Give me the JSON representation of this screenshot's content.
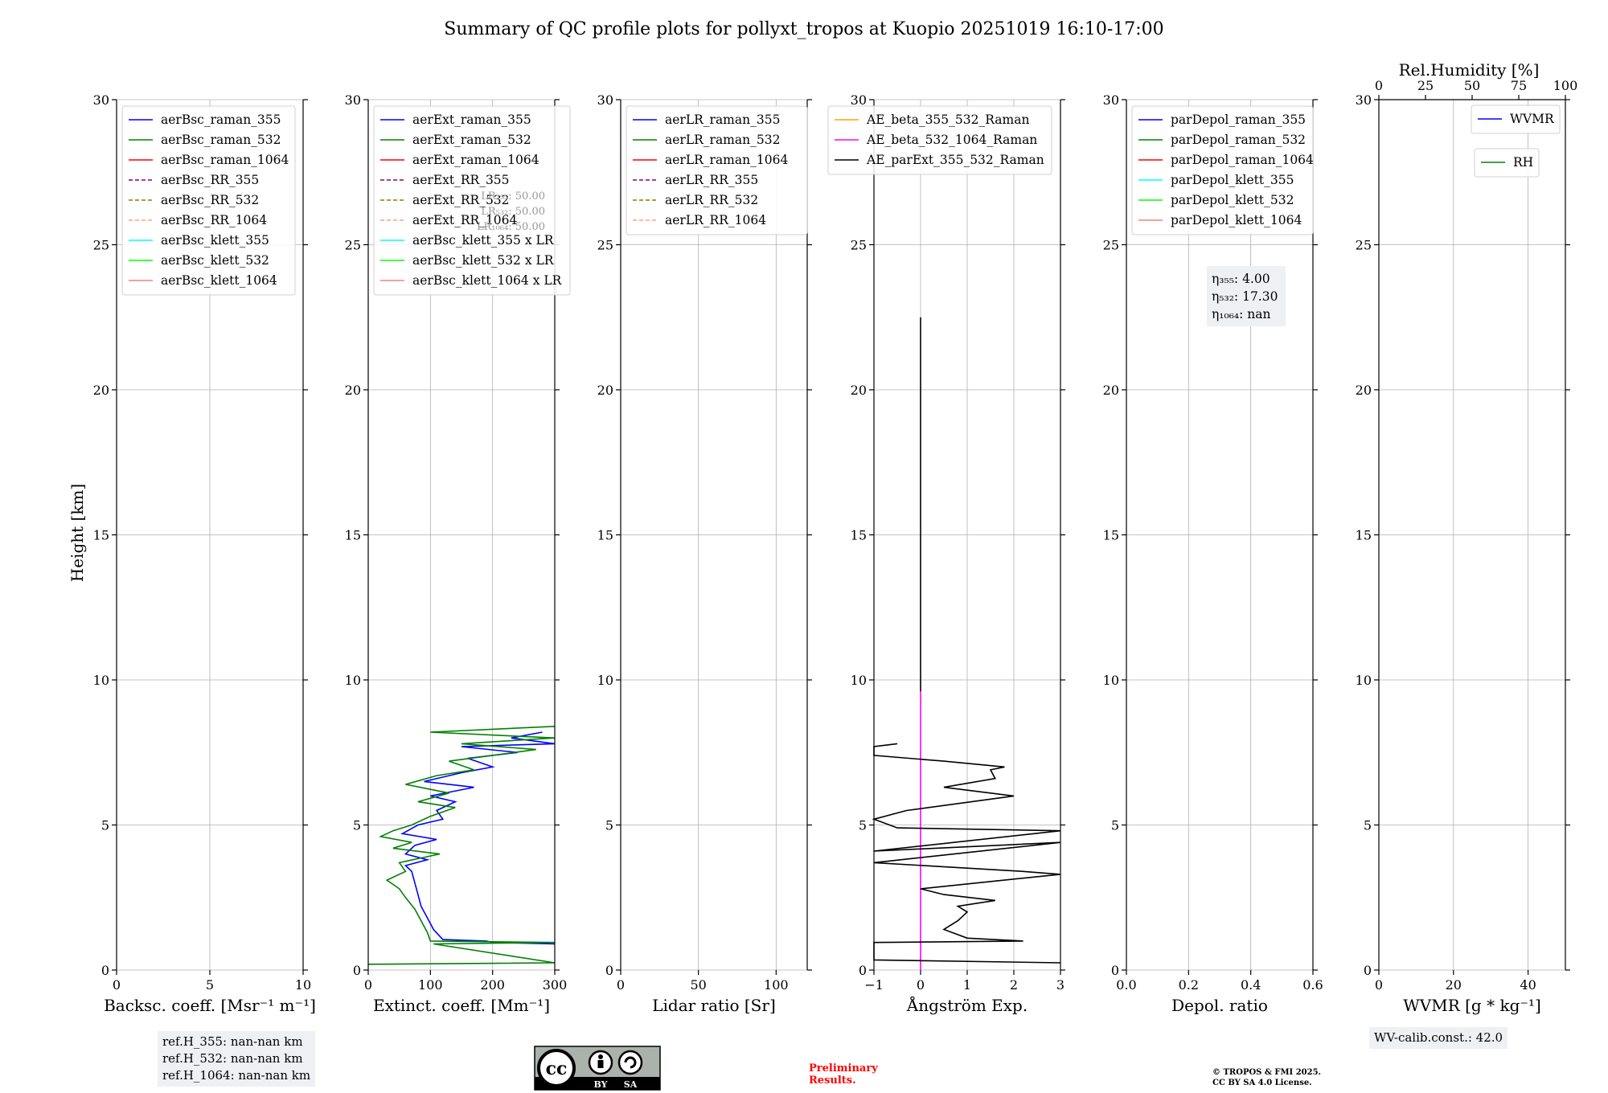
{
  "title": "Summary of QC profile plots for pollyxt_tropos at Kuopio 20251019 16:10-17:00",
  "ylabel": "Height [km]",
  "yticks": [
    "0",
    "5",
    "10",
    "15",
    "20",
    "25",
    "30"
  ],
  "ylim": [
    0,
    30
  ],
  "colors": {
    "blue": "#0000ff",
    "green": "#008000",
    "red": "#ff0000",
    "purple": "#800080",
    "olive": "#808000",
    "salmon": "#ffa07a",
    "cyan": "#00ffff",
    "lime": "#00ff00",
    "lightcoral": "#f08080",
    "orange": "#ffa500",
    "magenta": "#ff00ff",
    "black": "#000000",
    "grid": "#b0b0b0",
    "red_text": "#ff0000"
  },
  "chart_data": [
    {
      "type": "line",
      "xlabel": "Backsc. coeff. [Msr⁻¹ m⁻¹]",
      "xlim": [
        0,
        10
      ],
      "xticks": [
        0,
        5,
        10
      ],
      "xtick_labels": [
        "0",
        "5",
        "10"
      ],
      "legend": [
        {
          "label": "aerBsc_raman_355",
          "color": "blue",
          "dash": false
        },
        {
          "label": "aerBsc_raman_532",
          "color": "green",
          "dash": false
        },
        {
          "label": "aerBsc_raman_1064",
          "color": "red",
          "dash": false
        },
        {
          "label": "aerBsc_RR_355",
          "color": "purple",
          "dash": true
        },
        {
          "label": "aerBsc_RR_532",
          "color": "olive",
          "dash": true
        },
        {
          "label": "aerBsc_RR_1064",
          "color": "salmon",
          "dash": true
        },
        {
          "label": "aerBsc_klett_355",
          "color": "cyan",
          "dash": false
        },
        {
          "label": "aerBsc_klett_532",
          "color": "lime",
          "dash": false
        },
        {
          "label": "aerBsc_klett_1064",
          "color": "lightcoral",
          "dash": false
        }
      ],
      "series": []
    },
    {
      "type": "line",
      "xlabel": "Extinct. coeff. [Mm⁻¹]",
      "xlim": [
        0,
        300
      ],
      "xticks": [
        0,
        100,
        200,
        300
      ],
      "xtick_labels": [
        "0",
        "100",
        "200",
        "300"
      ],
      "legend": [
        {
          "label": "aerExt_raman_355",
          "color": "blue",
          "dash": false
        },
        {
          "label": "aerExt_raman_532",
          "color": "green",
          "dash": false
        },
        {
          "label": "aerExt_raman_1064",
          "color": "red",
          "dash": false
        },
        {
          "label": "aerExt_RR_355",
          "color": "purple",
          "dash": true
        },
        {
          "label": "aerExt_RR_532",
          "color": "olive",
          "dash": true
        },
        {
          "label": "aerExt_RR_1064",
          "color": "salmon",
          "dash": true
        },
        {
          "label": "aerBsc_klett_355 x LR",
          "color": "cyan",
          "dash": false
        },
        {
          "label": "aerBsc_klett_532 x LR",
          "color": "lime",
          "dash": false
        },
        {
          "label": "aerBsc_klett_1064 x LR",
          "color": "lightcoral",
          "dash": false
        }
      ],
      "annotations": [
        "LR₃₅₅: 50.00",
        "LR₅₃₂: 50.00",
        "LR₁₀₆₄: 50.00"
      ],
      "series": [
        {
          "name": "aerExt_raman_355",
          "color": "blue",
          "points": [
            [
              300,
              0.9
            ],
            [
              200,
              0.95
            ],
            [
              190,
              1.0
            ],
            [
              120,
              1.05
            ],
            [
              105,
              1.4
            ],
            [
              95,
              1.8
            ],
            [
              85,
              2.2
            ],
            [
              80,
              2.6
            ],
            [
              75,
              3.0
            ],
            [
              70,
              3.4
            ],
            [
              60,
              3.6
            ],
            [
              95,
              3.8
            ],
            [
              60,
              4.0
            ],
            [
              75,
              4.3
            ],
            [
              110,
              4.5
            ],
            [
              55,
              4.7
            ],
            [
              80,
              5.0
            ],
            [
              120,
              5.2
            ],
            [
              110,
              5.5
            ],
            [
              140,
              5.8
            ],
            [
              100,
              6.0
            ],
            [
              170,
              6.3
            ],
            [
              90,
              6.5
            ],
            [
              150,
              6.8
            ],
            [
              200,
              7.0
            ],
            [
              160,
              7.3
            ],
            [
              240,
              7.5
            ],
            [
              150,
              7.7
            ],
            [
              300,
              7.8
            ],
            [
              230,
              8.0
            ],
            [
              280,
              8.2
            ]
          ]
        },
        {
          "name": "aerExt_raman_532",
          "color": "green",
          "points": [
            [
              0,
              0.2
            ],
            [
              300,
              0.25
            ],
            [
              105,
              0.9
            ],
            [
              300,
              0.95
            ],
            [
              100,
              1.0
            ],
            [
              95,
              1.3
            ],
            [
              85,
              1.7
            ],
            [
              75,
              2.1
            ],
            [
              60,
              2.5
            ],
            [
              50,
              2.8
            ],
            [
              30,
              3.1
            ],
            [
              60,
              3.4
            ],
            [
              50,
              3.7
            ],
            [
              115,
              4.0
            ],
            [
              40,
              4.2
            ],
            [
              70,
              4.4
            ],
            [
              20,
              4.6
            ],
            [
              40,
              4.8
            ],
            [
              70,
              5.0
            ],
            [
              100,
              5.3
            ],
            [
              140,
              5.6
            ],
            [
              80,
              5.8
            ],
            [
              130,
              6.1
            ],
            [
              60,
              6.4
            ],
            [
              110,
              6.7
            ],
            [
              170,
              6.9
            ],
            [
              130,
              7.2
            ],
            [
              200,
              7.4
            ],
            [
              270,
              7.6
            ],
            [
              150,
              7.8
            ],
            [
              300,
              8.0
            ],
            [
              100,
              8.2
            ],
            [
              300,
              8.4
            ]
          ]
        }
      ]
    },
    {
      "type": "line",
      "xlabel": "Lidar ratio [Sr]",
      "xlim": [
        0,
        120
      ],
      "xticks": [
        0,
        50,
        100
      ],
      "xtick_labels": [
        "0",
        "50",
        "100"
      ],
      "legend": [
        {
          "label": "aerLR_raman_355",
          "color": "blue",
          "dash": false
        },
        {
          "label": "aerLR_raman_532",
          "color": "green",
          "dash": false
        },
        {
          "label": "aerLR_raman_1064",
          "color": "red",
          "dash": false
        },
        {
          "label": "aerLR_RR_355",
          "color": "purple",
          "dash": true
        },
        {
          "label": "aerLR_RR_532",
          "color": "olive",
          "dash": true
        },
        {
          "label": "aerLR_RR_1064",
          "color": "salmon",
          "dash": true
        }
      ],
      "series": []
    },
    {
      "type": "line",
      "xlabel": "Ångström Exp.",
      "xlim": [
        -1,
        3
      ],
      "xticks": [
        -1,
        0,
        1,
        2,
        3
      ],
      "xtick_labels": [
        "−1",
        "0",
        "1",
        "2",
        "3"
      ],
      "legend": [
        {
          "label": "AE_beta_355_532_Raman",
          "color": "orange",
          "dash": false
        },
        {
          "label": "AE_beta_532_1064_Raman",
          "color": "magenta",
          "dash": false
        },
        {
          "label": "AE_parExt_355_532_Raman",
          "color": "black",
          "dash": false
        }
      ],
      "series": [
        {
          "name": "AE_beta_532_1064_Raman",
          "color": "magenta",
          "points": [
            [
              0,
              0
            ],
            [
              0,
              9.6
            ]
          ]
        },
        {
          "name": "AE_parExt_355_532_Raman",
          "color": "black",
          "points": [
            [
              3,
              0.25
            ],
            [
              -1,
              0.35
            ],
            [
              -1,
              0.95
            ],
            [
              2.2,
              1.0
            ],
            [
              1.0,
              1.1
            ],
            [
              0.5,
              1.4
            ],
            [
              0.8,
              1.7
            ],
            [
              1.0,
              2.0
            ],
            [
              0.8,
              2.2
            ],
            [
              1.6,
              2.4
            ],
            [
              0.5,
              2.6
            ],
            [
              0,
              2.8
            ],
            [
              3,
              3.3
            ],
            [
              2.2,
              3.4
            ],
            [
              -1,
              3.7
            ],
            [
              3,
              4.4
            ],
            [
              -1,
              4.1
            ],
            [
              3,
              4.8
            ],
            [
              -0.5,
              4.9
            ],
            [
              -1,
              5.2
            ],
            [
              -0.3,
              5.5
            ],
            [
              2.0,
              6.0
            ],
            [
              0.5,
              6.3
            ],
            [
              1.6,
              6.6
            ],
            [
              1.5,
              6.9
            ],
            [
              1.8,
              7.0
            ],
            [
              0.5,
              7.2
            ],
            [
              -1,
              7.4
            ],
            [
              -1,
              7.7
            ],
            [
              -0.5,
              7.8
            ]
          ]
        },
        {
          "name": "AE_parExt_upper",
          "color": "black",
          "points": [
            [
              0,
              9.6
            ],
            [
              0,
              22.5
            ]
          ]
        }
      ]
    },
    {
      "type": "line",
      "xlabel": "Depol. ratio",
      "xlim": [
        0,
        0.6
      ],
      "xticks": [
        0,
        0.2,
        0.4,
        0.6
      ],
      "xtick_labels": [
        "0.0",
        "0.2",
        "0.4",
        "0.6"
      ],
      "legend": [
        {
          "label": "parDepol_raman_355",
          "color": "blue",
          "dash": false
        },
        {
          "label": "parDepol_raman_532",
          "color": "green",
          "dash": false
        },
        {
          "label": "parDepol_raman_1064",
          "color": "red",
          "dash": false
        },
        {
          "label": "parDepol_klett_355",
          "color": "cyan",
          "dash": false
        },
        {
          "label": "parDepol_klett_532",
          "color": "lime",
          "dash": false
        },
        {
          "label": "parDepol_klett_1064",
          "color": "lightcoral",
          "dash": false
        }
      ],
      "eta": [
        "η₃₅₅: 4.00",
        "η₅₃₂: 17.30",
        "η₁₀₆₄: nan"
      ],
      "series": []
    },
    {
      "type": "line",
      "xlabel": "WVMR [g * kg⁻¹]",
      "xlim": [
        0,
        50
      ],
      "xticks": [
        0,
        20,
        40
      ],
      "xtick_labels": [
        "0",
        "20",
        "40"
      ],
      "top_xlabel": "Rel.Humidity [%]",
      "top_xlim": [
        0,
        100
      ],
      "top_xticks": [
        0,
        25,
        50,
        75,
        100
      ],
      "top_xtick_labels": [
        "0",
        "25",
        "50",
        "75",
        "100"
      ],
      "legend": [
        {
          "label": "WVMR",
          "color": "blue",
          "dash": false
        }
      ],
      "legend2": [
        {
          "label": "RH",
          "color": "green",
          "dash": false
        }
      ],
      "series": []
    }
  ],
  "footer": {
    "refh": [
      "ref.H_355: nan-nan km",
      "ref.H_532: nan-nan km",
      "ref.H_1064: nan-nan km"
    ],
    "wv_calib": "WV-calib.const.: 42.0",
    "preliminary": [
      "Preliminary",
      "Results."
    ],
    "copyright": [
      "© TROPOS & FMI 2025.",
      "CC BY SA 4.0 License."
    ],
    "cc_badge": {
      "cc": "cc",
      "by": "BY",
      "sa": "SA"
    }
  }
}
